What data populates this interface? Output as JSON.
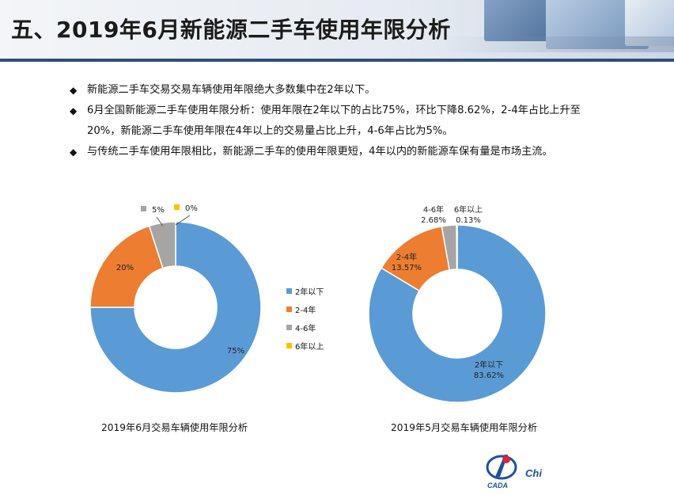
{
  "title": "五、2019年6月新能源二手车使用年限分析",
  "bullet_marker": "◆",
  "bullets": [
    "新能源二手车交易交易车辆使用年限绝大多数集中在2年以下。",
    "6月全国新能源二手车使用年限分析：使用年限在2年以下的占比75%，环比下降8.62%，2-4年占比上升至20%，新能源二手车使用年限在4年以上的交易量占比上升，4-6年占比为5%。",
    "与传统二手车使用年限相比，新能源二手车的使用年限更短，4年以内的新能源车保有量是市场主流。"
  ],
  "legend": [
    "2年以下",
    "2-4年",
    "4-6年",
    "6年以上"
  ],
  "chart_data": [
    {
      "type": "pie",
      "donut": true,
      "title": "2019年6月交易车辆使用年限分析",
      "categories": [
        "2年以下",
        "2-4年",
        "4-6年",
        "6年以上"
      ],
      "values": [
        75,
        20,
        5,
        0
      ],
      "labels": [
        "75%",
        "20%",
        "5%",
        "0%"
      ],
      "colors": [
        "#5b9bd5",
        "#ed7d31",
        "#a5a5a5",
        "#ffc000"
      ]
    },
    {
      "type": "pie",
      "donut": true,
      "title": "2019年5月交易车辆使用年限分析",
      "categories": [
        "2年以下",
        "2-4年",
        "4-6年",
        "6年以上"
      ],
      "values": [
        83.62,
        13.57,
        2.68,
        0.13
      ],
      "labels": [
        "83.62%",
        "13.57%",
        "2.68%",
        "0.13%"
      ],
      "colors": [
        "#5b9bd5",
        "#ed7d31",
        "#a5a5a5",
        "#ffc000"
      ]
    }
  ],
  "logo_text": "CADA",
  "logo_fragment": "Chi"
}
